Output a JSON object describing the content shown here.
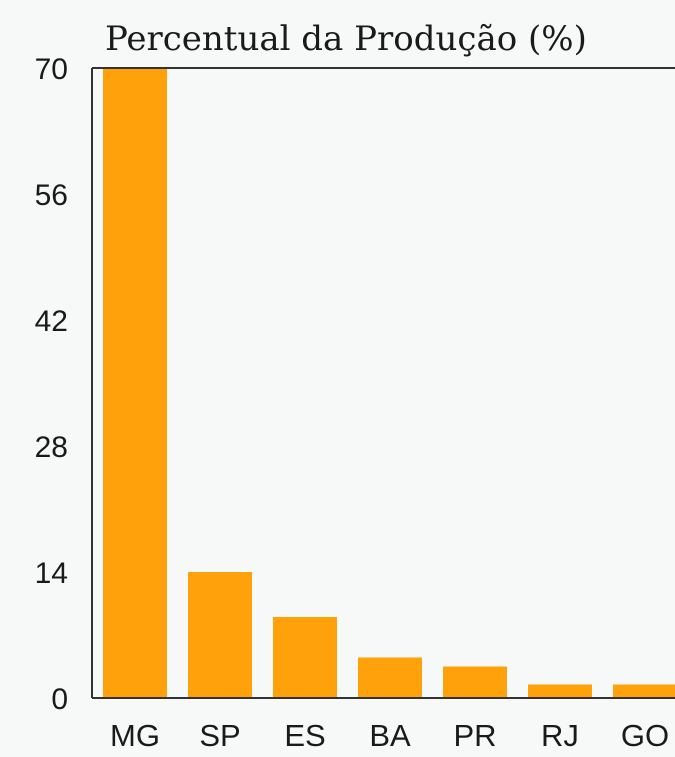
{
  "chart_data": {
    "type": "bar",
    "title": "Percentual da Produção (%)",
    "xlabel": "",
    "ylabel": "",
    "categories": [
      "MG",
      "SP",
      "ES",
      "BA",
      "PR",
      "RJ",
      "GO"
    ],
    "values": [
      70,
      14,
      9,
      4.5,
      3.5,
      1.5,
      1.5
    ],
    "ylim": [
      0,
      70
    ],
    "yticks": [
      0,
      14,
      28,
      42,
      56,
      70
    ],
    "grid": false,
    "colors": {
      "bar": "#ffa10a",
      "background": "#f7f8f8",
      "axis": "#333333"
    }
  }
}
